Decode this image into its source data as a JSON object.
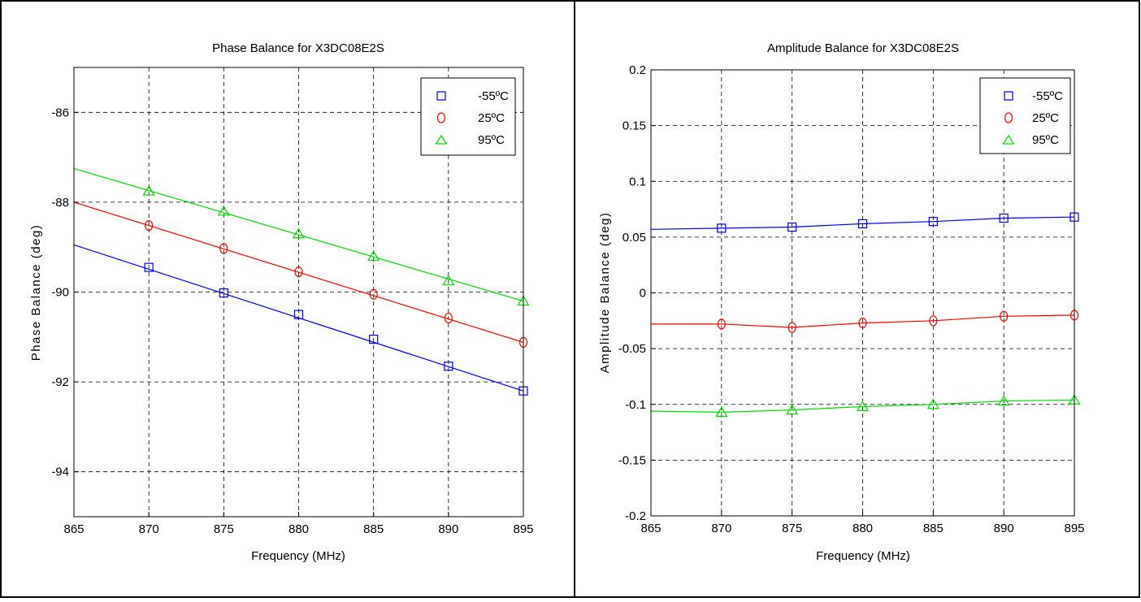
{
  "chart_data": [
    {
      "type": "line",
      "title": "Phase Balance for X3DC08E2S",
      "xlabel": "Frequency (MHz)",
      "ylabel": "Phase Balance (deg)",
      "xlim": [
        865,
        895
      ],
      "ylim": [
        -95,
        -85
      ],
      "xticks": [
        865,
        870,
        875,
        880,
        885,
        890,
        895
      ],
      "yticks": [
        -86,
        -88,
        -90,
        -92,
        -94
      ],
      "grid": true,
      "legend_position": "top-right",
      "series": [
        {
          "name": "-55ºC",
          "color": "#0000ff",
          "marker": "square",
          "fit": [
            [
              865,
              -88.95
            ],
            [
              895,
              -92.2
            ]
          ],
          "x": [
            870,
            875,
            880,
            885,
            890,
            895
          ],
          "values": [
            -89.45,
            -90.02,
            -90.5,
            -91.05,
            -91.65,
            -92.2
          ]
        },
        {
          "name": "25ºC",
          "color": "#ff0000",
          "marker": "circle",
          "fit": [
            [
              865,
              -88.0
            ],
            [
              895,
              -91.12
            ]
          ],
          "x": [
            870,
            875,
            880,
            885,
            890,
            895
          ],
          "values": [
            -88.52,
            -89.03,
            -89.55,
            -90.05,
            -90.58,
            -91.12
          ]
        },
        {
          "name": "95ºC",
          "color": "#00dd00",
          "marker": "triangle",
          "fit": [
            [
              865,
              -87.25
            ],
            [
              895,
              -90.2
            ]
          ],
          "x": [
            870,
            875,
            880,
            885,
            890,
            895
          ],
          "values": [
            -87.75,
            -88.2,
            -88.7,
            -89.2,
            -89.75,
            -90.2
          ]
        }
      ]
    },
    {
      "type": "line",
      "title": "Amplitude Balance for X3DC08E2S",
      "xlabel": "Frequency (MHz)",
      "ylabel": "Amplitude Balance (deg)",
      "xlim": [
        865,
        895
      ],
      "ylim": [
        -0.2,
        0.2
      ],
      "xticks": [
        865,
        870,
        875,
        880,
        885,
        890,
        895
      ],
      "yticks": [
        0.2,
        0.15,
        0.1,
        0.05,
        0,
        -0.05,
        -0.1,
        -0.15,
        -0.2
      ],
      "grid": true,
      "legend_position": "top-right",
      "series": [
        {
          "name": "-55ºC",
          "color": "#0000ff",
          "marker": "square",
          "fit": [
            [
              865,
              0.057
            ],
            [
              870,
              0.058
            ],
            [
              875,
              0.059
            ],
            [
              880,
              0.062
            ],
            [
              885,
              0.064
            ],
            [
              890,
              0.067
            ],
            [
              895,
              0.068
            ]
          ],
          "x": [
            870,
            875,
            880,
            885,
            890,
            895
          ],
          "values": [
            0.058,
            0.059,
            0.062,
            0.064,
            0.067,
            0.068
          ]
        },
        {
          "name": "25ºC",
          "color": "#ff0000",
          "marker": "circle",
          "fit": [
            [
              865,
              -0.028
            ],
            [
              870,
              -0.028
            ],
            [
              875,
              -0.031
            ],
            [
              880,
              -0.027
            ],
            [
              885,
              -0.025
            ],
            [
              890,
              -0.021
            ],
            [
              895,
              -0.02
            ]
          ],
          "x": [
            870,
            875,
            880,
            885,
            890,
            895
          ],
          "values": [
            -0.028,
            -0.031,
            -0.027,
            -0.025,
            -0.021,
            -0.02
          ]
        },
        {
          "name": "95ºC",
          "color": "#00dd00",
          "marker": "triangle",
          "fit": [
            [
              865,
              -0.106
            ],
            [
              870,
              -0.107
            ],
            [
              875,
              -0.105
            ],
            [
              880,
              -0.102
            ],
            [
              885,
              -0.1
            ],
            [
              890,
              -0.097
            ],
            [
              895,
              -0.096
            ]
          ],
          "x": [
            870,
            875,
            880,
            885,
            890,
            895
          ],
          "values": [
            -0.107,
            -0.105,
            -0.102,
            -0.1,
            -0.097,
            -0.096
          ]
        }
      ]
    }
  ]
}
